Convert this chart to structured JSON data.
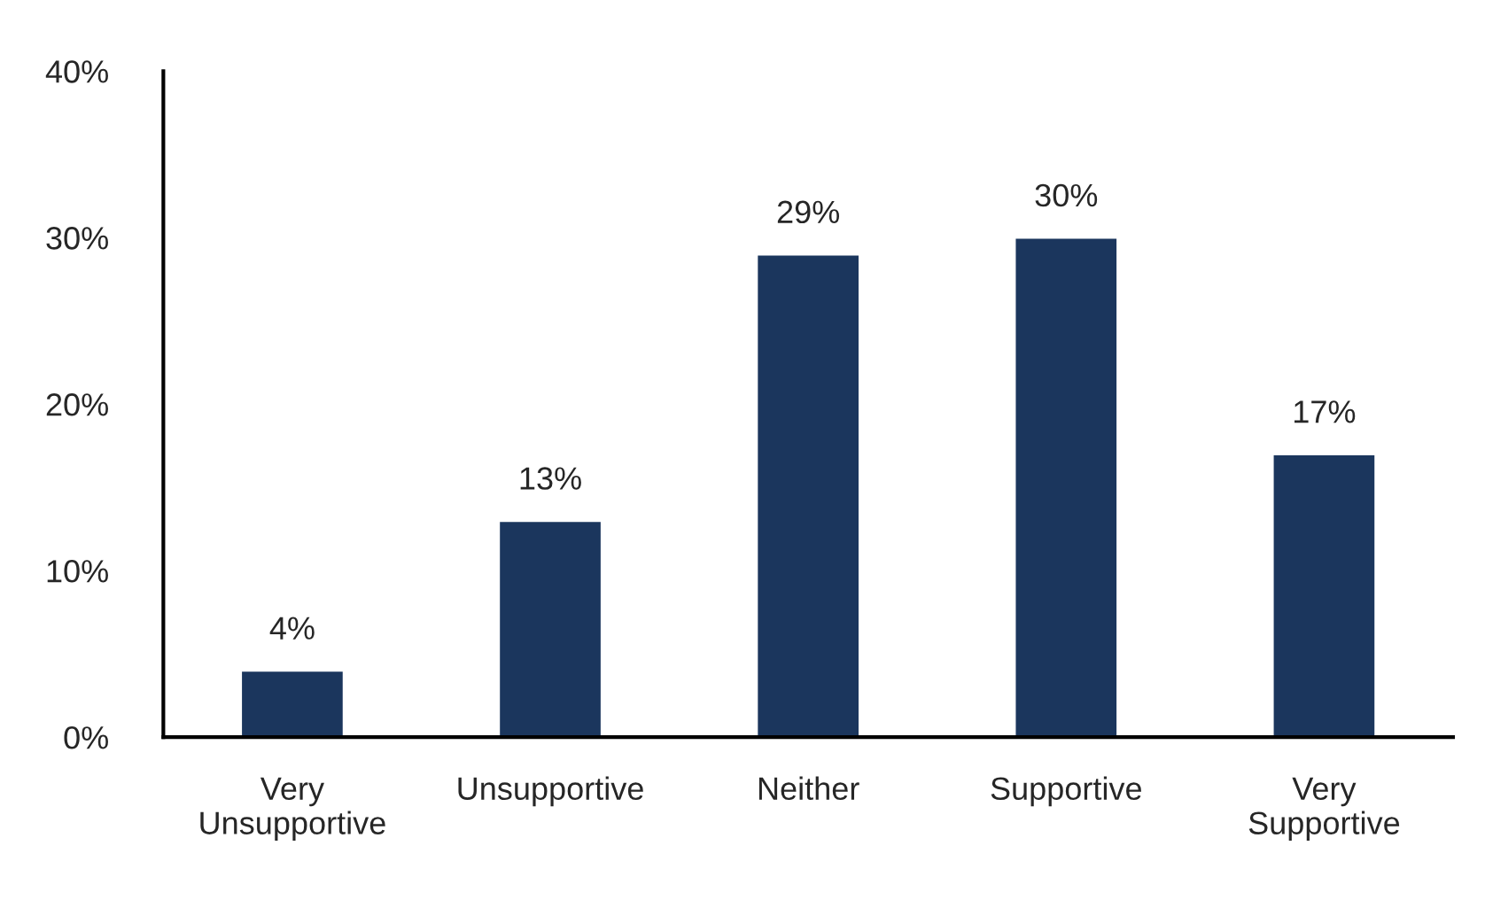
{
  "chart_data": {
    "type": "bar",
    "categories": [
      "Very\nUnsupportive",
      "Unsupportive",
      "Neither",
      "Supportive",
      "Very\nSupportive"
    ],
    "values": [
      4,
      13,
      29,
      30,
      17
    ],
    "value_labels": [
      "4%",
      "13%",
      "29%",
      "30%",
      "17%"
    ],
    "color": "#1b365d",
    "ylim": [
      0,
      40
    ],
    "yticks": [
      {
        "value": 0,
        "label": "0%"
      },
      {
        "value": 10,
        "label": "10%"
      },
      {
        "value": 20,
        "label": "20%"
      },
      {
        "value": 30,
        "label": "30%"
      },
      {
        "value": 40,
        "label": "40%"
      }
    ],
    "grid": false,
    "legend": false
  }
}
